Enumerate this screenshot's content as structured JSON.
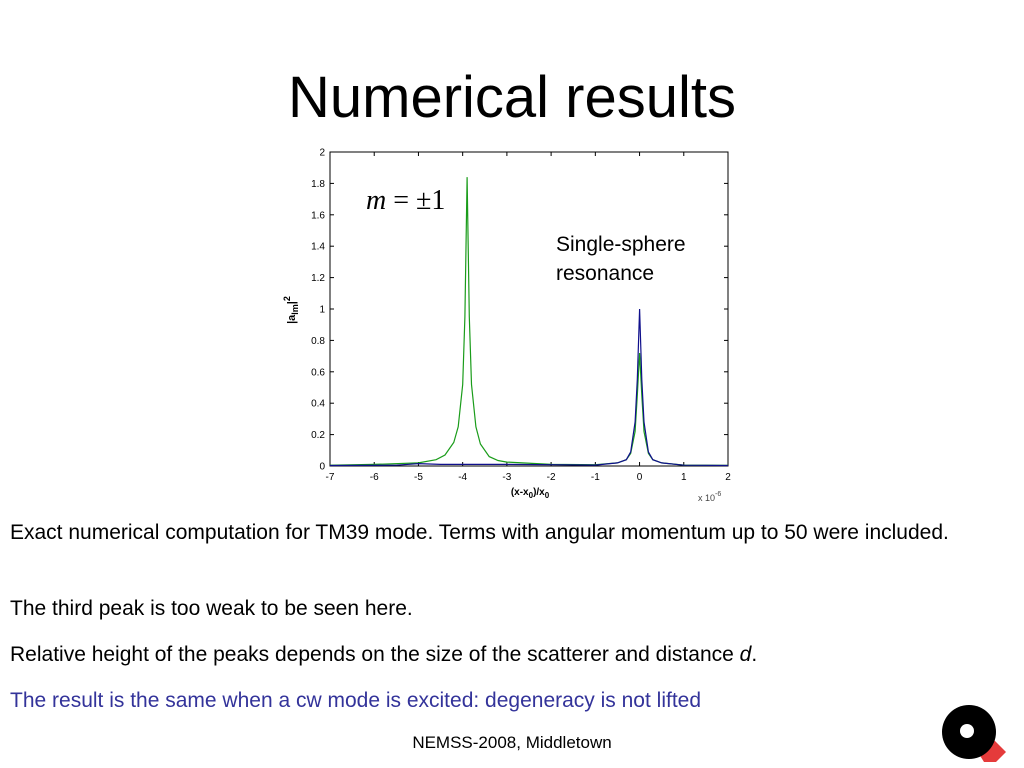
{
  "slide": {
    "title": "Numerical results",
    "footer": "NEMSS-2008, Middletown",
    "paragraphs": [
      "Exact numerical computation for TM39 mode. Terms with angular momentum up to 50 were included.",
      "The third peak is too weak to be seen here.",
      "Relative height of the peaks depends on the size of the scatterer and distance",
      "The result is the same when a cw mode is excited: degeneracy is not lifted"
    ],
    "paragraph3_italic": "d",
    "paragraph3_end": "."
  },
  "chart_data": {
    "type": "line",
    "xlabel_parts": [
      "(x-x",
      "0",
      ")/x",
      "0"
    ],
    "ylabel_parts": [
      "|a",
      "lm",
      "|",
      "2"
    ],
    "x_multiplier_parts": [
      "x 10",
      "-6"
    ],
    "xlim": [
      -7,
      2
    ],
    "ylim": [
      0,
      2
    ],
    "x_ticks": [
      "-7",
      "-6",
      "-5",
      "-4",
      "-3",
      "-2",
      "-1",
      "0",
      "1",
      "2"
    ],
    "y_ticks": [
      "0",
      "0.2",
      "0.4",
      "0.6",
      "0.8",
      "1",
      "1.2",
      "1.4",
      "1.6",
      "1.8",
      "2"
    ],
    "grid": false,
    "annotations": {
      "m_label": [
        "m",
        " = ±1"
      ],
      "resonance_label": [
        "Single-sphere",
        "resonance"
      ]
    },
    "series": [
      {
        "color": "#1a9c1a",
        "x": [
          -7,
          -6,
          -5,
          -4.6,
          -4.4,
          -4.2,
          -4.1,
          -4.0,
          -3.95,
          -3.9,
          -3.85,
          -3.8,
          -3.7,
          -3.6,
          -3.4,
          -3.2,
          -3.0,
          -2.0,
          -1.0,
          -0.5,
          -0.3,
          -0.2,
          -0.1,
          -0.05,
          0,
          0.05,
          0.1,
          0.2,
          0.3,
          0.5,
          1.0,
          2.0
        ],
        "y": [
          0.005,
          0.01,
          0.02,
          0.04,
          0.07,
          0.15,
          0.25,
          0.52,
          0.95,
          1.84,
          0.95,
          0.52,
          0.25,
          0.14,
          0.06,
          0.035,
          0.025,
          0.01,
          0.008,
          0.02,
          0.04,
          0.08,
          0.22,
          0.45,
          0.72,
          0.45,
          0.22,
          0.08,
          0.04,
          0.02,
          0.006,
          0.004
        ]
      },
      {
        "color": "#10108c",
        "x": [
          -7,
          -5.5,
          -5,
          -4.5,
          -3,
          -2,
          -1,
          -0.5,
          -0.3,
          -0.2,
          -0.1,
          -0.05,
          0,
          0.05,
          0.1,
          0.2,
          0.3,
          0.5,
          1.0,
          2.0
        ],
        "y": [
          0.003,
          0.005,
          0.015,
          0.01,
          0.01,
          0.008,
          0.006,
          0.02,
          0.04,
          0.09,
          0.28,
          0.55,
          1.0,
          0.55,
          0.28,
          0.09,
          0.04,
          0.02,
          0.005,
          0.003
        ]
      }
    ]
  }
}
